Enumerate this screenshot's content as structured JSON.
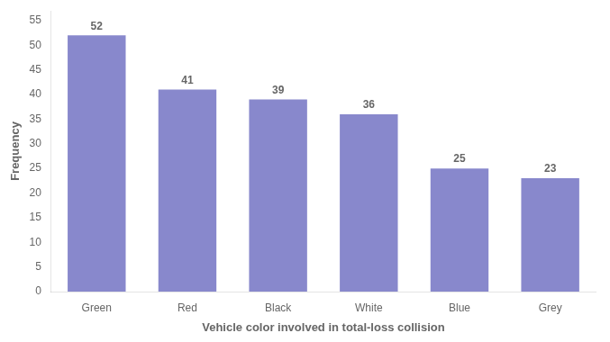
{
  "chart_data": {
    "type": "bar",
    "categories": [
      "Green",
      "Red",
      "Black",
      "White",
      "Blue",
      "Grey"
    ],
    "values": [
      52,
      41,
      39,
      36,
      25,
      23
    ],
    "color": "#8888cc",
    "xlabel": "Vehicle color involved in total-loss collision",
    "ylabel": "Frequency",
    "ylim": [
      0,
      57
    ],
    "yticks": [
      0,
      5,
      10,
      15,
      20,
      25,
      30,
      35,
      40,
      45,
      50,
      55
    ],
    "grid": false,
    "data_labels": true
  }
}
